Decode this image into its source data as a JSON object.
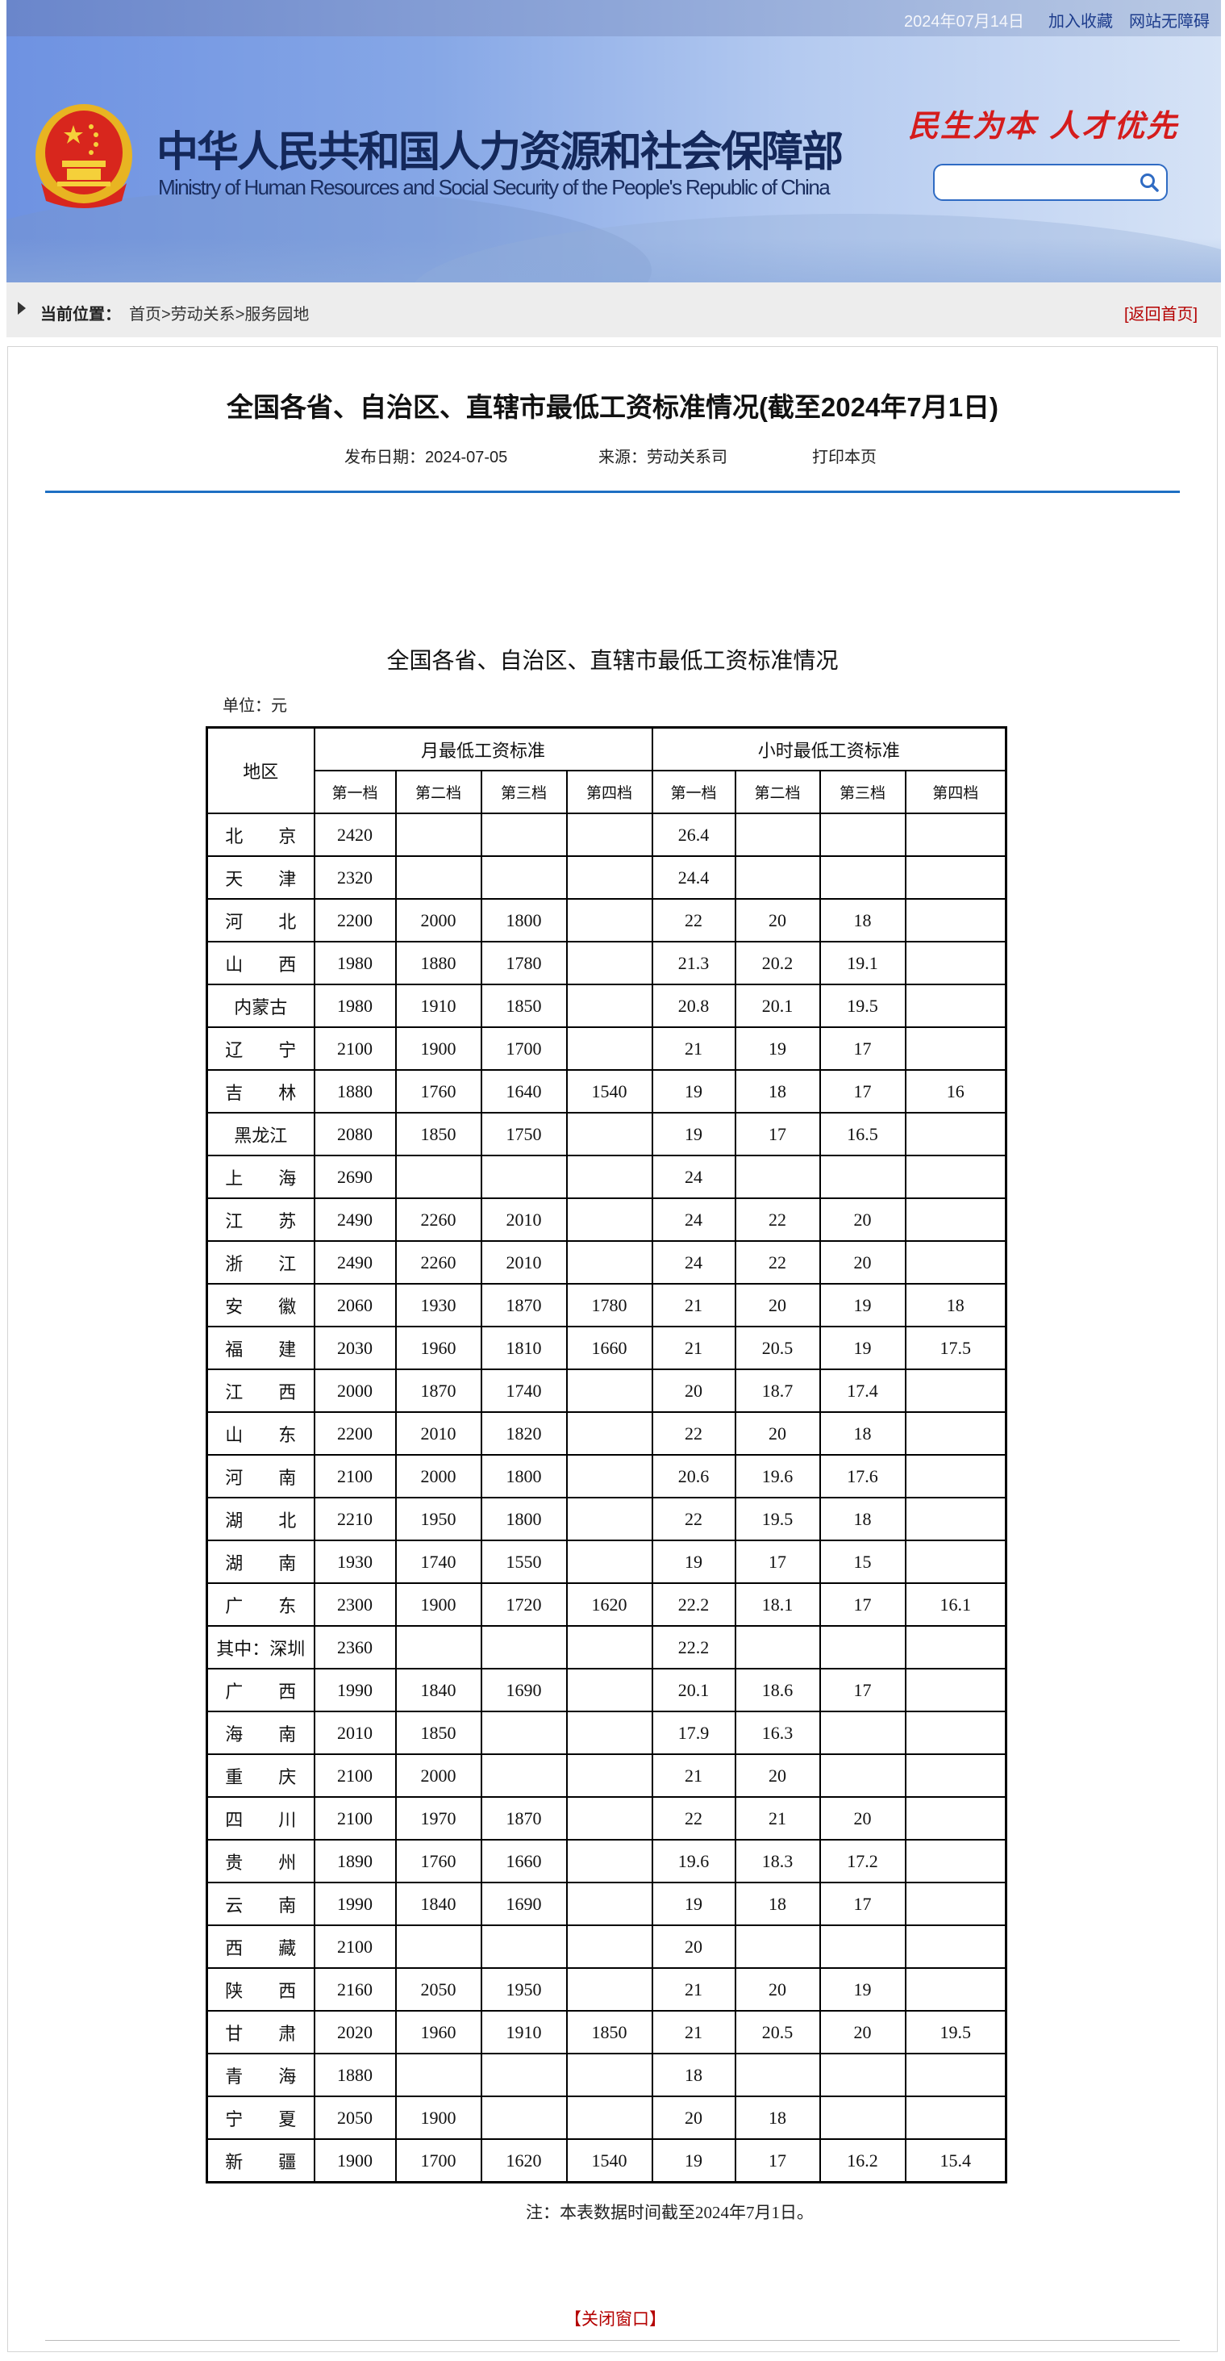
{
  "topbar": {
    "date": "2024年07月14日",
    "favorite": "加入收藏",
    "accessibility": "网站无障碍"
  },
  "header": {
    "title_cn": "中华人民共和国人力资源和社会保障部",
    "title_en": "Ministry of Human Resources and Social Security of the People's Republic of China",
    "slogan": "民生为本 人才优先",
    "search_placeholder": "",
    "search_icon": "search-icon",
    "emblem_icon": "national-emblem-icon"
  },
  "breadcrumb": {
    "label": "当前位置：",
    "items": [
      "首页",
      "劳动关系",
      "服务园地"
    ],
    "separator": ">",
    "back_home": "[返回首页]"
  },
  "article": {
    "title": "全国各省、自治区、直辖市最低工资标准情况(截至2024年7月1日)",
    "publish_date": "发布日期：2024-07-05",
    "source": "来源：劳动关系司",
    "print": "打印本页",
    "accent_color": "#1e6fc3"
  },
  "table": {
    "title": "全国各省、自治区、直辖市最低工资标准情况",
    "unit": "单位：元",
    "region_header": "地区",
    "monthly_header": "月最低工资标准",
    "hourly_header": "小时最低工资标准",
    "tiers": [
      "第一档",
      "第二档",
      "第三档",
      "第四档"
    ],
    "rows": [
      {
        "region": "北　　京",
        "monthly": [
          "2420",
          "",
          "",
          ""
        ],
        "hourly": [
          "26.4",
          "",
          "",
          ""
        ]
      },
      {
        "region": "天　　津",
        "monthly": [
          "2320",
          "",
          "",
          ""
        ],
        "hourly": [
          "24.4",
          "",
          "",
          ""
        ]
      },
      {
        "region": "河　　北",
        "monthly": [
          "2200",
          "2000",
          "1800",
          ""
        ],
        "hourly": [
          "22",
          "20",
          "18",
          ""
        ]
      },
      {
        "region": "山　　西",
        "monthly": [
          "1980",
          "1880",
          "1780",
          ""
        ],
        "hourly": [
          "21.3",
          "20.2",
          "19.1",
          ""
        ]
      },
      {
        "region": "内蒙古",
        "monthly": [
          "1980",
          "1910",
          "1850",
          ""
        ],
        "hourly": [
          "20.8",
          "20.1",
          "19.5",
          ""
        ]
      },
      {
        "region": "辽　　宁",
        "monthly": [
          "2100",
          "1900",
          "1700",
          ""
        ],
        "hourly": [
          "21",
          "19",
          "17",
          ""
        ]
      },
      {
        "region": "吉　　林",
        "monthly": [
          "1880",
          "1760",
          "1640",
          "1540"
        ],
        "hourly": [
          "19",
          "18",
          "17",
          "16"
        ]
      },
      {
        "region": "黑龙江",
        "monthly": [
          "2080",
          "1850",
          "1750",
          ""
        ],
        "hourly": [
          "19",
          "17",
          "16.5",
          ""
        ]
      },
      {
        "region": "上　　海",
        "monthly": [
          "2690",
          "",
          "",
          ""
        ],
        "hourly": [
          "24",
          "",
          "",
          ""
        ]
      },
      {
        "region": "江　　苏",
        "monthly": [
          "2490",
          "2260",
          "2010",
          ""
        ],
        "hourly": [
          "24",
          "22",
          "20",
          ""
        ]
      },
      {
        "region": "浙　　江",
        "monthly": [
          "2490",
          "2260",
          "2010",
          ""
        ],
        "hourly": [
          "24",
          "22",
          "20",
          ""
        ]
      },
      {
        "region": "安　　徽",
        "monthly": [
          "2060",
          "1930",
          "1870",
          "1780"
        ],
        "hourly": [
          "21",
          "20",
          "19",
          "18"
        ]
      },
      {
        "region": "福　　建",
        "monthly": [
          "2030",
          "1960",
          "1810",
          "1660"
        ],
        "hourly": [
          "21",
          "20.5",
          "19",
          "17.5"
        ]
      },
      {
        "region": "江　　西",
        "monthly": [
          "2000",
          "1870",
          "1740",
          ""
        ],
        "hourly": [
          "20",
          "18.7",
          "17.4",
          ""
        ]
      },
      {
        "region": "山　　东",
        "monthly": [
          "2200",
          "2010",
          "1820",
          ""
        ],
        "hourly": [
          "22",
          "20",
          "18",
          ""
        ]
      },
      {
        "region": "河　　南",
        "monthly": [
          "2100",
          "2000",
          "1800",
          ""
        ],
        "hourly": [
          "20.6",
          "19.6",
          "17.6",
          ""
        ]
      },
      {
        "region": "湖　　北",
        "monthly": [
          "2210",
          "1950",
          "1800",
          ""
        ],
        "hourly": [
          "22",
          "19.5",
          "18",
          ""
        ]
      },
      {
        "region": "湖　　南",
        "monthly": [
          "1930",
          "1740",
          "1550",
          ""
        ],
        "hourly": [
          "19",
          "17",
          "15",
          ""
        ]
      },
      {
        "region": "广　　东",
        "monthly": [
          "2300",
          "1900",
          "1720",
          "1620"
        ],
        "hourly": [
          "22.2",
          "18.1",
          "17",
          "16.1"
        ]
      },
      {
        "region": "其中：深圳",
        "monthly": [
          "2360",
          "",
          "",
          ""
        ],
        "hourly": [
          "22.2",
          "",
          "",
          ""
        ]
      },
      {
        "region": "广　　西",
        "monthly": [
          "1990",
          "1840",
          "1690",
          ""
        ],
        "hourly": [
          "20.1",
          "18.6",
          "17",
          ""
        ]
      },
      {
        "region": "海　　南",
        "monthly": [
          "2010",
          "1850",
          "",
          ""
        ],
        "hourly": [
          "17.9",
          "16.3",
          "",
          ""
        ]
      },
      {
        "region": "重　　庆",
        "monthly": [
          "2100",
          "2000",
          "",
          ""
        ],
        "hourly": [
          "21",
          "20",
          "",
          ""
        ]
      },
      {
        "region": "四　　川",
        "monthly": [
          "2100",
          "1970",
          "1870",
          ""
        ],
        "hourly": [
          "22",
          "21",
          "20",
          ""
        ]
      },
      {
        "region": "贵　　州",
        "monthly": [
          "1890",
          "1760",
          "1660",
          ""
        ],
        "hourly": [
          "19.6",
          "18.3",
          "17.2",
          ""
        ]
      },
      {
        "region": "云　　南",
        "monthly": [
          "1990",
          "1840",
          "1690",
          ""
        ],
        "hourly": [
          "19",
          "18",
          "17",
          ""
        ]
      },
      {
        "region": "西　　藏",
        "monthly": [
          "2100",
          "",
          "",
          ""
        ],
        "hourly": [
          "20",
          "",
          "",
          ""
        ]
      },
      {
        "region": "陕　　西",
        "monthly": [
          "2160",
          "2050",
          "1950",
          ""
        ],
        "hourly": [
          "21",
          "20",
          "19",
          ""
        ]
      },
      {
        "region": "甘　　肃",
        "monthly": [
          "2020",
          "1960",
          "1910",
          "1850"
        ],
        "hourly": [
          "21",
          "20.5",
          "20",
          "19.5"
        ]
      },
      {
        "region": "青　　海",
        "monthly": [
          "1880",
          "",
          "",
          ""
        ],
        "hourly": [
          "18",
          "",
          "",
          ""
        ]
      },
      {
        "region": "宁　　夏",
        "monthly": [
          "2050",
          "1900",
          "",
          ""
        ],
        "hourly": [
          "20",
          "18",
          "",
          ""
        ]
      },
      {
        "region": "新　　疆",
        "monthly": [
          "1900",
          "1700",
          "1620",
          "1540"
        ],
        "hourly": [
          "19",
          "17",
          "16.2",
          "15.4"
        ]
      }
    ],
    "note": "注：本表数据时间截至2024年7月1日。"
  },
  "footer": {
    "close_window": "【关闭窗口】"
  }
}
